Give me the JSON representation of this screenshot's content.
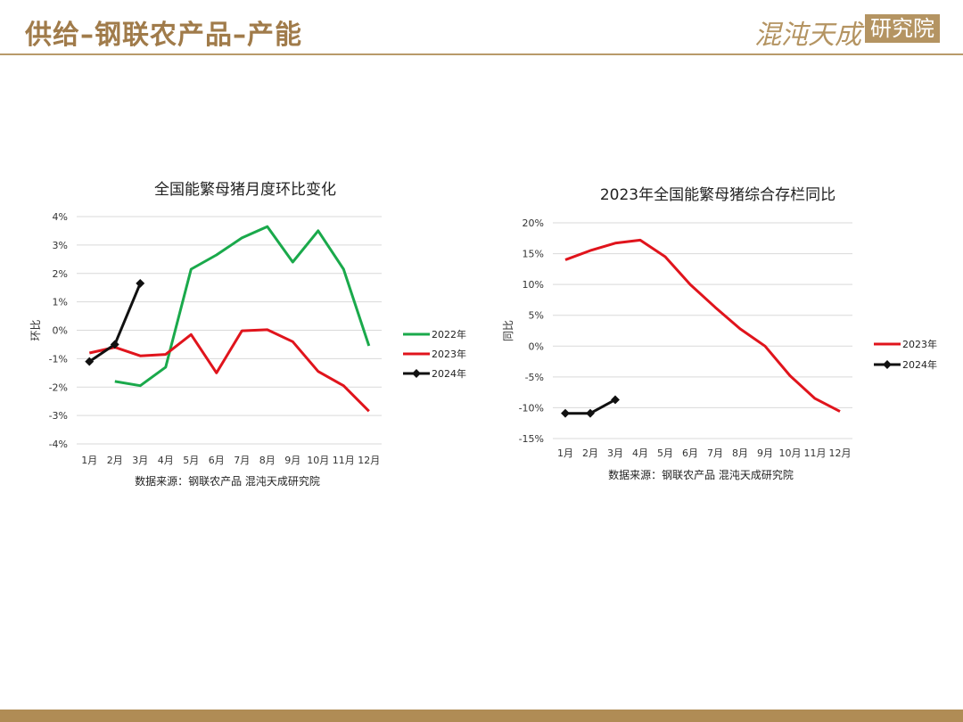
{
  "header": {
    "title": "供给–钢联农产品–产能",
    "logo_script": "混沌天成",
    "logo_box": "研究院"
  },
  "colors": {
    "accent": "#b08c55",
    "s2022": "#1aa94b",
    "s2023": "#e0141c",
    "s2024": "#111111"
  },
  "chart_data": [
    {
      "type": "line",
      "title": "全国能繁母猪月度环比变化",
      "ylabel": "环比",
      "xlabel": "",
      "source": "数据来源：钢联农产品 混沌天成研究院",
      "categories": [
        "1月",
        "2月",
        "3月",
        "4月",
        "5月",
        "6月",
        "7月",
        "8月",
        "9月",
        "10月",
        "11月",
        "12月"
      ],
      "ylim": [
        -4,
        4
      ],
      "yticks": [
        "-4%",
        "-3%",
        "-2%",
        "-1%",
        "0%",
        "1%",
        "2%",
        "3%",
        "4%"
      ],
      "grid": true,
      "legend_position": "right",
      "series": [
        {
          "name": "2022年",
          "color": "#1aa94b",
          "marker": false,
          "values": [
            null,
            -1.8,
            -1.95,
            -1.3,
            2.15,
            2.65,
            3.25,
            3.65,
            2.4,
            3.5,
            2.15,
            -0.55
          ]
        },
        {
          "name": "2023年",
          "color": "#e0141c",
          "marker": false,
          "values": [
            -0.8,
            -0.6,
            -0.9,
            -0.85,
            -0.15,
            -1.5,
            -0.02,
            0.02,
            -0.4,
            -1.45,
            -1.95,
            -2.85
          ]
        },
        {
          "name": "2024年",
          "color": "#111111",
          "marker": true,
          "values": [
            -1.1,
            -0.5,
            1.65,
            null,
            null,
            null,
            null,
            null,
            null,
            null,
            null,
            null
          ]
        }
      ]
    },
    {
      "type": "line",
      "title": "2023年全国能繁母猪综合存栏同比",
      "ylabel": "同比",
      "xlabel": "",
      "source": "数据来源：钢联农产品 混沌天成研究院",
      "categories": [
        "1月",
        "2月",
        "3月",
        "4月",
        "5月",
        "6月",
        "7月",
        "8月",
        "9月",
        "10月",
        "11月",
        "12月"
      ],
      "ylim": [
        -15,
        20
      ],
      "yticks": [
        "-15%",
        "-10%",
        "-5%",
        "0%",
        "5%",
        "10%",
        "15%",
        "20%"
      ],
      "grid": true,
      "legend_position": "right",
      "series": [
        {
          "name": "2023年",
          "color": "#e0141c",
          "marker": false,
          "values": [
            14,
            15.5,
            16.7,
            17.2,
            14.5,
            10,
            6.3,
            2.8,
            0,
            -4.8,
            -8.5,
            -10.6
          ]
        },
        {
          "name": "2024年",
          "color": "#111111",
          "marker": true,
          "values": [
            -10.9,
            -10.9,
            -8.7,
            null,
            null,
            null,
            null,
            null,
            null,
            null,
            null,
            null
          ]
        }
      ]
    }
  ]
}
